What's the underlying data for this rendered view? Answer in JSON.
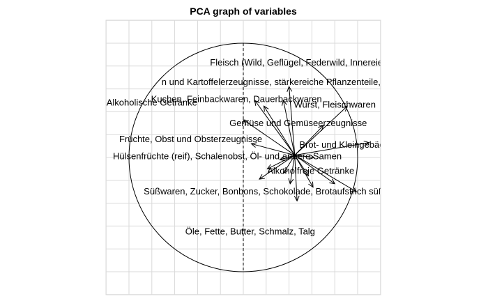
{
  "chart_data": {
    "type": "scatter",
    "kind": "pca-variable-correlation-circle",
    "title": "PCA graph of variables",
    "xlabel": "",
    "ylabel": "",
    "xlim": [
      -1.2,
      1.2
    ],
    "ylim": [
      -1.2,
      1.2
    ],
    "grid": true,
    "unit_circle": true,
    "vertical_reference_line": "dashed",
    "clip_to_plot": true,
    "arrows": [
      {
        "x": -0.05,
        "y": 0.6,
        "label": "Fleisch (Wild, Geflügel, Federwild, Innereien)",
        "label_x": 0.5,
        "label_y": 0.83
      },
      {
        "x": -0.1,
        "y": 0.48,
        "label": "n und Kartoffelerzeugnisse, stärkereiche Pflanzenteile, Pilze",
        "label_x": 0.34,
        "label_y": 0.66
      },
      {
        "x": -0.35,
        "y": 0.48,
        "label": "Alkoholische Getränke",
        "label_x": -0.8,
        "label_y": 0.48
      },
      {
        "x": -0.27,
        "y": 0.43,
        "label": "Kuchen, Feinbackwaren, Dauerbackwaren",
        "label_x": -0.06,
        "label_y": 0.51
      },
      {
        "x": 0.46,
        "y": 0.43,
        "label": "Wurst, Fleischwaren",
        "label_x": 0.8,
        "label_y": 0.46
      },
      {
        "x": 0.25,
        "y": 0.26,
        "label": "Gemüse und Gemüseerzeugnisse",
        "label_x": 0.48,
        "label_y": 0.3
      },
      {
        "x": -0.45,
        "y": 0.31,
        "label": "Früchte, Obst und Obsterzeugnisse",
        "label_x": -0.46,
        "label_y": 0.16
      },
      {
        "x": 0.65,
        "y": 0.11,
        "label": "Brot- und Kleingebäck",
        "label_x": 0.88,
        "label_y": 0.11
      },
      {
        "x": -0.38,
        "y": 0.1,
        "label": "Hülsenfrüchte (reif), Schalenobst, Öl- und andere Samen",
        "label_x": -0.14,
        "label_y": 0.01
      },
      {
        "x": 0.17,
        "y": -0.02,
        "label": "Alkoholfreie Getränke",
        "label_x": 0.59,
        "label_y": -0.12
      },
      {
        "x": -0.13,
        "y": -0.04,
        "label": "",
        "label_x": 0,
        "label_y": 0
      },
      {
        "x": -0.31,
        "y": -0.21,
        "label": "Süßwaren, Zucker, Bonbons, Schokolade, Brotaufstrich süß",
        "label_x": 0.18,
        "label_y": -0.3
      },
      {
        "x": -0.24,
        "y": -0.12,
        "label": "",
        "label_x": 0,
        "label_y": 0
      },
      {
        "x": 0.54,
        "y": -0.32,
        "label": "",
        "label_x": 0,
        "label_y": 0
      },
      {
        "x": 0.02,
        "y": -0.4,
        "label": "Öle, Fette, Butter, Schmalz, Talg",
        "label_x": 0.06,
        "label_y": -0.65
      },
      {
        "x": 0.16,
        "y": -0.28,
        "label": "",
        "label_x": 0,
        "label_y": 0
      },
      {
        "x": -0.1,
        "y": -0.16,
        "label": "",
        "label_x": 0,
        "label_y": 0
      },
      {
        "x": 0.35,
        "y": -0.25,
        "label": "",
        "label_x": 0,
        "label_y": 0
      },
      {
        "x": -0.04,
        "y": -0.25,
        "label": "",
        "label_x": 0,
        "label_y": 0
      },
      {
        "x": 0.12,
        "y": -0.18,
        "label": "",
        "label_x": 0,
        "label_y": 0
      }
    ]
  }
}
